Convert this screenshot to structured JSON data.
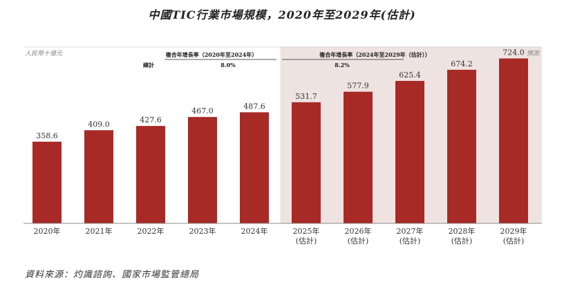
{
  "page": {
    "title": "中國TIC行業市場規模，2020年至2029年(估計)",
    "source": "資料來源：灼識諮詢、國家市場監管總局"
  },
  "colors": {
    "bar": "#a72a26",
    "forecast_bg": "#efe3e2",
    "axis": "#888888"
  },
  "chart_data": {
    "type": "bar",
    "unit_label": "人民幣十億元",
    "forecast_label": "預測",
    "categories": [
      "2020年",
      "2021年",
      "2022年",
      "2023年",
      "2024年",
      "2025年\n(估計)",
      "2026年\n(估計)",
      "2027年\n(估計)",
      "2028年\n(估計)",
      "2029年\n(估計)"
    ],
    "values": [
      358.6,
      409.0,
      427.6,
      467.0,
      487.6,
      531.7,
      577.9,
      625.4,
      674.2,
      724.0
    ],
    "value_labels": [
      "358.6",
      "409.0",
      "427.6",
      "467.0",
      "487.6",
      "531.7",
      "577.9",
      "625.4",
      "674.2",
      "724.0"
    ],
    "forecast_start_index": 5,
    "ylim": [
      0,
      850
    ],
    "cagr": {
      "row_label": "總計",
      "historical": {
        "label": "複合年增長率（2020年至2024年）",
        "value": "8.0%"
      },
      "forecast": {
        "label": "複合年增長率（2024年至2029年（估計））",
        "value": "8.2%"
      }
    }
  }
}
